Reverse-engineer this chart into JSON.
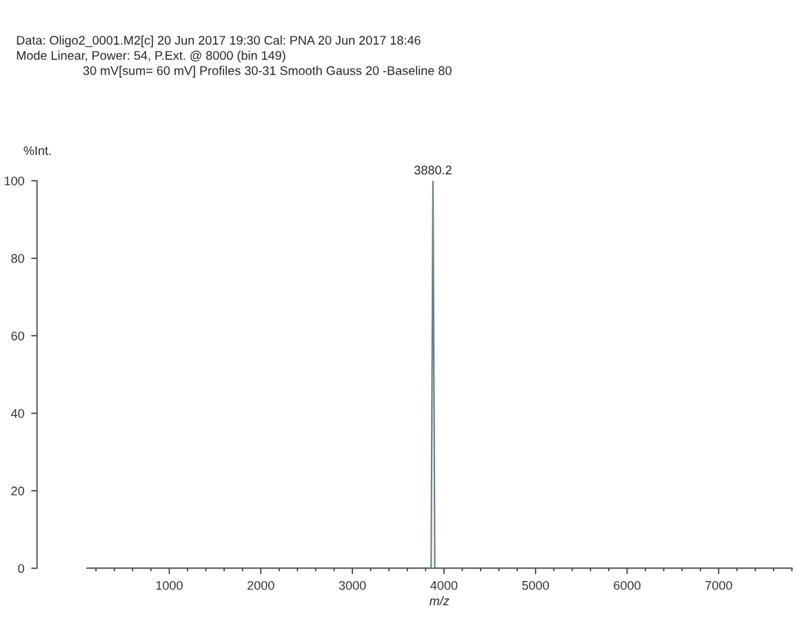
{
  "chart_data": {
    "type": "line",
    "title": "Data: Oligo2_0001.M2[c] 20 Jun 2017 19:30 Cal: PNA 20 Jun 2017 18:46",
    "subtitle": "Mode Linear, Power: 54, P.Ext. @ 8000 (bin 149)",
    "ylabel": "%Int.",
    "xlabel": "m/z",
    "annotations": [
      "30 mV[sum= 60 mV] Profiles 30-31 Smooth Gauss 20 -Baseline 80",
      {
        "text": "3880.2",
        "x": 3880.2,
        "y": 100
      }
    ],
    "x": [
      100,
      3860,
      3880.2,
      3900,
      7800
    ],
    "series": [
      {
        "color": "#6f7f8a",
        "values": [
          0,
          0,
          100,
          0,
          0
        ]
      }
    ],
    "xlim": [
      100,
      7800
    ],
    "xticks": [
      1000,
      2000,
      3000,
      4000,
      5000,
      6000,
      7000
    ],
    "ylim": [
      0,
      100
    ],
    "yticks": [
      0,
      20,
      40,
      60,
      80,
      100
    ],
    "grid": false,
    "legend": false
  }
}
